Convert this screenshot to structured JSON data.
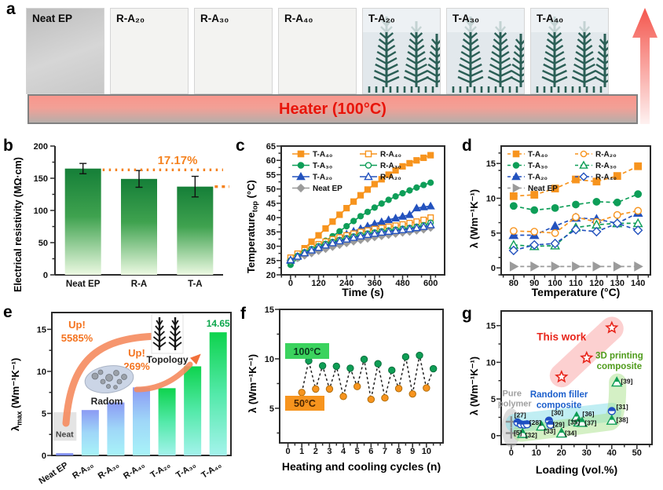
{
  "figure": {
    "panel_labels": [
      "a",
      "b",
      "c",
      "d",
      "e",
      "f",
      "g"
    ]
  },
  "panel_a": {
    "heater_label": "Heater (100°C)",
    "samples": [
      {
        "label": "Neat EP",
        "type": "neat"
      },
      {
        "label": "R-A₂₀",
        "type": "plain"
      },
      {
        "label": "R-A₃₀",
        "type": "plain"
      },
      {
        "label": "R-A₄₀",
        "type": "plain"
      },
      {
        "label": "T-A₂₀",
        "type": "tree"
      },
      {
        "label": "T-A₃₀",
        "type": "tree"
      },
      {
        "label": "T-A₄₀",
        "type": "tree"
      }
    ]
  },
  "chart_data": [
    {
      "id": "b",
      "type": "bar",
      "ylabel": "Electrical resistivity (MΩ·cm)",
      "categories": [
        "Neat EP",
        "R-A",
        "T-A"
      ],
      "values": [
        165,
        149,
        137
      ],
      "errors": [
        8,
        13,
        16
      ],
      "ylim": [
        0,
        200
      ],
      "yticks": [
        0,
        50,
        100,
        150,
        200
      ],
      "yminor_step": 25,
      "annotation_pct": "17.17%",
      "annotation_color": "#F5821F",
      "ref_line_y": 163,
      "ref_line2_y": 137,
      "bar_gradient": [
        "#157F38",
        "#3FA24F",
        "#ECF9E2"
      ]
    },
    {
      "id": "c",
      "type": "line",
      "xlabel": "Time (s)",
      "ylabel_main": "Temperature",
      "ylabel_sub": "top",
      "ylabel_unit": " (°C)",
      "xlim": [
        -40,
        660
      ],
      "ylim": [
        20,
        65
      ],
      "xticks": [
        0,
        120,
        240,
        360,
        480,
        600
      ],
      "xminor_step": 60,
      "yticks": [
        20,
        25,
        30,
        35,
        40,
        45,
        50,
        55,
        60,
        65
      ],
      "yminor_step": 2.5,
      "x": [
        0,
        30,
        60,
        90,
        120,
        150,
        180,
        210,
        240,
        270,
        300,
        330,
        360,
        390,
        420,
        450,
        480,
        510,
        540,
        570,
        600
      ],
      "series": [
        {
          "name": "T-A₄₀",
          "color": "#F7941E",
          "marker": "square",
          "filled": true,
          "legend_col": 0,
          "values": [
            25.0,
            27.0,
            29.3,
            31.6,
            33.8,
            36.2,
            38.6,
            41.0,
            43.3,
            45.6,
            47.8,
            49.8,
            51.7,
            53.4,
            55.0,
            56.5,
            57.9,
            59.0,
            60.0,
            60.9,
            61.8
          ]
        },
        {
          "name": "T-A₃₀",
          "color": "#0E9E58",
          "marker": "circle",
          "filled": true,
          "legend_col": 0,
          "values": [
            23.5,
            25.8,
            27.4,
            28.9,
            30.4,
            31.9,
            33.5,
            35.2,
            37.0,
            38.8,
            40.5,
            42.0,
            43.5,
            44.9,
            46.2,
            47.4,
            48.5,
            49.5,
            50.5,
            51.4,
            52.2
          ]
        },
        {
          "name": "T-A₂₀",
          "color": "#2352BE",
          "marker": "triangle",
          "filled": true,
          "legend_col": 0,
          "values": [
            25.0,
            26.6,
            27.9,
            29.1,
            30.2,
            31.2,
            32.2,
            33.2,
            34.2,
            35.2,
            36.1,
            37.0,
            37.8,
            38.5,
            39.2,
            39.8,
            40.4,
            41.0,
            43.3,
            43.7,
            44.0
          ]
        },
        {
          "name": "Neat EP",
          "color": "#9B9B9B",
          "marker": "diamond",
          "filled": true,
          "legend_col": 0,
          "values": [
            25.0,
            25.9,
            26.8,
            27.6,
            28.4,
            29.1,
            29.8,
            30.5,
            31.1,
            31.7,
            32.2,
            32.7,
            33.2,
            33.6,
            34.0,
            34.4,
            34.8,
            35.1,
            35.5,
            35.9,
            36.5
          ]
        },
        {
          "name": "R-A₄₀",
          "color": "#F7941E",
          "marker": "square",
          "filled": false,
          "legend_col": 1,
          "values": [
            26.0,
            27.4,
            28.6,
            29.7,
            30.7,
            31.6,
            32.4,
            33.1,
            33.8,
            34.4,
            35.0,
            35.5,
            36.0,
            36.4,
            36.8,
            37.2,
            37.6,
            38.1,
            38.6,
            39.2,
            40.0
          ]
        },
        {
          "name": "R-A₃₀",
          "color": "#0E9E58",
          "marker": "circle",
          "filled": false,
          "legend_col": 1,
          "values": [
            25.0,
            26.6,
            27.9,
            29.0,
            30.0,
            30.8,
            31.5,
            32.2,
            32.8,
            33.4,
            33.9,
            34.4,
            34.8,
            35.2,
            35.5,
            35.8,
            36.1,
            36.4,
            36.8,
            37.3,
            38.2
          ]
        },
        {
          "name": "R-A₂₀",
          "color": "#2352BE",
          "marker": "triangle",
          "filled": false,
          "legend_col": 1,
          "values": [
            25.2,
            26.4,
            27.6,
            28.6,
            29.5,
            30.3,
            31.1,
            31.8,
            32.4,
            33.0,
            33.5,
            34.0,
            34.4,
            34.8,
            35.1,
            35.4,
            35.7,
            36.0,
            36.4,
            36.8,
            37.4
          ]
        }
      ]
    },
    {
      "id": "d",
      "type": "line",
      "xlabel": "Temperature (°C)",
      "ylabel": "λ (Wm⁻¹K⁻¹)",
      "xlim": [
        74,
        146
      ],
      "ylim": [
        -1,
        17.5
      ],
      "xticks": [
        80,
        90,
        100,
        110,
        120,
        130,
        140
      ],
      "xminor_step": 5,
      "yticks": [
        0,
        5,
        10,
        15
      ],
      "yminor_step": 2.5,
      "x": [
        80,
        90,
        100,
        110,
        120,
        130,
        140
      ],
      "dashed": true,
      "series": [
        {
          "name": "T-A₄₀",
          "color": "#F7941E",
          "marker": "square",
          "filled": true,
          "legend_col": 0,
          "values": [
            10.3,
            10.5,
            11.4,
            12.7,
            12.4,
            13.2,
            14.6
          ]
        },
        {
          "name": "T-A₃₀",
          "color": "#0E9E58",
          "marker": "circle",
          "filled": true,
          "legend_col": 0,
          "values": [
            8.9,
            8.3,
            8.6,
            9.1,
            9.5,
            9.4,
            10.6
          ]
        },
        {
          "name": "T-A₂₀",
          "color": "#2352BE",
          "marker": "triangle",
          "filled": true,
          "legend_col": 0,
          "values": [
            4.7,
            4.7,
            6.0,
            7.2,
            7.0,
            6.4,
            7.9
          ]
        },
        {
          "name": "Neat EP",
          "color": "#9B9B9B",
          "marker": "rtriangle",
          "filled": true,
          "legend_col": 0,
          "values": [
            0.2,
            0.2,
            0.2,
            0.2,
            0.2,
            0.2,
            0.2
          ]
        },
        {
          "name": "R-A₂₀",
          "color": "#F7941E",
          "marker": "circle",
          "filled": false,
          "legend_col": 1,
          "values": [
            5.3,
            5.2,
            5.0,
            7.3,
            6.6,
            7.6,
            8.2
          ]
        },
        {
          "name": "R-A₃₀",
          "color": "#0E9E58",
          "marker": "triangle",
          "filled": false,
          "legend_col": 1,
          "values": [
            3.3,
            3.1,
            3.2,
            5.8,
            6.2,
            6.4,
            6.4
          ]
        },
        {
          "name": "R-A₄₀",
          "color": "#2352BE",
          "marker": "diamond",
          "filled": false,
          "legend_col": 1,
          "values": [
            2.5,
            3.3,
            3.5,
            5.5,
            5.2,
            6.4,
            5.4
          ]
        }
      ]
    },
    {
      "id": "e",
      "type": "bar",
      "ylabel_main": "λ",
      "ylabel_sub": "max",
      "ylabel_unit": " (Wm⁻¹K⁻¹)",
      "categories": [
        "Neat EP",
        "R-A₂₀",
        "R-A₃₀",
        "R-A₄₀",
        "T-A₂₀",
        "T-A₃₀",
        "T-A₄₀"
      ],
      "values": [
        0.26,
        5.4,
        6.3,
        8.1,
        8.0,
        10.6,
        14.65
      ],
      "bar_styles": [
        "neat",
        "blue",
        "blue",
        "blue",
        "green",
        "green",
        "green"
      ],
      "ylim": [
        0,
        17
      ],
      "yticks": [
        0,
        5,
        10,
        15
      ],
      "yminor_step": 2.5,
      "value_label": {
        "text": "14.65",
        "color": "#0AA64B"
      },
      "annotations": {
        "up1": "Up!",
        "up1_pct": "5585%",
        "up2": "Up!",
        "up2_pct": "269%",
        "random": "Radom",
        "topology": "Topology",
        "neat": "Neat",
        "color": "#F4731F"
      },
      "blue_gradient": [
        "#8B9AF4",
        "#9FD7F8",
        "#A8F3F8"
      ],
      "green_gradient": [
        "#0ED34D",
        "#53E9A9",
        "#A4F3EC"
      ]
    },
    {
      "id": "f",
      "type": "cycle",
      "xlabel": "Heating and cooling cycles (n)",
      "ylabel": "λ (Wm⁻¹K⁻¹)",
      "xlim": [
        -0.6,
        11.2
      ],
      "ylim": [
        1.5,
        15
      ],
      "xticks": [
        0,
        1,
        2,
        3,
        4,
        5,
        6,
        7,
        8,
        9,
        10
      ],
      "xminor_step": 0.5,
      "yticks": [
        5,
        10,
        15
      ],
      "yminor_step": 2.5,
      "hot": {
        "label": "100°C",
        "color": "#0E9E55",
        "box_bg": "#3BD35E",
        "x": [
          1.5,
          2.5,
          3.5,
          4.5,
          5.5,
          6.5,
          7.5,
          8.5,
          9.5,
          10.5
        ],
        "values": [
          9.8,
          9.3,
          9.25,
          9.05,
          9.95,
          9.5,
          8.85,
          10.2,
          10.35,
          9.0
        ]
      },
      "cold": {
        "label": "50°C",
        "color": "#F7941E",
        "box_bg": "#F7941E",
        "x": [
          1,
          2,
          3,
          4,
          5,
          6,
          7,
          8,
          9,
          10
        ],
        "values": [
          6.6,
          6.95,
          6.95,
          6.2,
          7.2,
          5.9,
          6.05,
          7.0,
          6.45,
          7.05
        ]
      }
    },
    {
      "id": "g",
      "type": "scatter",
      "xlabel": "Loading (vol.%)",
      "ylabel": "λ (Wm⁻¹K⁻¹)",
      "xlim": [
        -4,
        56
      ],
      "ylim": [
        -1.2,
        17
      ],
      "xticks": [
        0,
        10,
        20,
        30,
        40,
        50
      ],
      "xminor_step": 5,
      "yticks": [
        0,
        5,
        10,
        15
      ],
      "yminor_step": 2.5,
      "groups": [
        {
          "name": "This work",
          "marker": "star",
          "color": "#E8251B",
          "size": 7,
          "points": [
            [
              20,
              8.0
            ],
            [
              30,
              10.6
            ],
            [
              40,
              14.7
            ]
          ]
        },
        {
          "name": "Pure polymer",
          "marker": "plus",
          "color": "#8F8F8F",
          "size": 5,
          "points": [
            [
              0,
              1.9
            ],
            [
              0,
              0.35
            ]
          ]
        },
        {
          "name": "Random filler composite",
          "marker": "halfcircle",
          "color": "#1F4FC2",
          "size": 4.5,
          "points": [
            [
              2.5,
              1.8
            ],
            [
              3.8,
              1.55
            ],
            [
              5.2,
              1.5
            ],
            [
              6.3,
              1.55
            ],
            [
              15,
              2.05
            ],
            [
              15.6,
              1.5
            ],
            [
              40,
              3.35
            ]
          ]
        },
        {
          "name": "3D printing composite",
          "marker": "halftriangle",
          "color": "#0D9E55",
          "size": 5,
          "points": [
            [
              4.5,
              0.3
            ],
            [
              12,
              1.3
            ],
            [
              20,
              0.35
            ],
            [
              26,
              2.55
            ],
            [
              26.8,
              1.85
            ],
            [
              28.2,
              1.8
            ],
            [
              40,
              2.1
            ],
            [
              42,
              7.3
            ]
          ]
        }
      ],
      "labels": [
        {
          "text": "This work",
          "color": "#E8251B",
          "x": 20,
          "y": 13.0,
          "size": 13.5
        },
        {
          "text": "3D printing",
          "color": "#4F9C1C",
          "x": 43,
          "y": 10.5,
          "size": 11.5
        },
        {
          "text": "composite",
          "color": "#4F9C1C",
          "x": 43,
          "y": 9.1,
          "size": 11.5
        },
        {
          "text": "Random filler",
          "color": "#1C5FCC",
          "x": 19,
          "y": 5.2,
          "size": 11.5
        },
        {
          "text": "composite",
          "color": "#1C5FCC",
          "x": 19,
          "y": 3.8,
          "size": 11.5
        },
        {
          "text": "Pure",
          "color": "#A0A0A0",
          "x": 0.3,
          "y": 5.4,
          "size": 11
        },
        {
          "text": "polymer",
          "color": "#A0A0A0",
          "x": 1.4,
          "y": 4.0,
          "size": 11
        }
      ],
      "ref_labels": [
        {
          "text": "[5]",
          "x": 1.0,
          "y": 0.1
        },
        {
          "text": "[27]",
          "x": 1.2,
          "y": 2.5
        },
        {
          "text": "[28]",
          "x": 7.2,
          "y": 1.45
        },
        {
          "text": "[29]",
          "x": 16.5,
          "y": 1.2
        },
        {
          "text": "[30]",
          "x": 16.0,
          "y": 2.8
        },
        {
          "text": "[31]",
          "x": 41.8,
          "y": 3.6
        },
        {
          "text": "[32]",
          "x": 5.6,
          "y": -0.25
        },
        {
          "text": "[33]",
          "x": 12.9,
          "y": 0.3
        },
        {
          "text": "[34]",
          "x": 21.3,
          "y": 0.05
        },
        {
          "text": "[35]",
          "x": 22.6,
          "y": 1.55
        },
        {
          "text": "[36]",
          "x": 28.3,
          "y": 2.65
        },
        {
          "text": "[37]",
          "x": 29.2,
          "y": 1.4
        },
        {
          "text": "[38]",
          "x": 41.8,
          "y": 1.85
        },
        {
          "text": "[39]",
          "x": 43.6,
          "y": 7.1
        }
      ]
    }
  ]
}
